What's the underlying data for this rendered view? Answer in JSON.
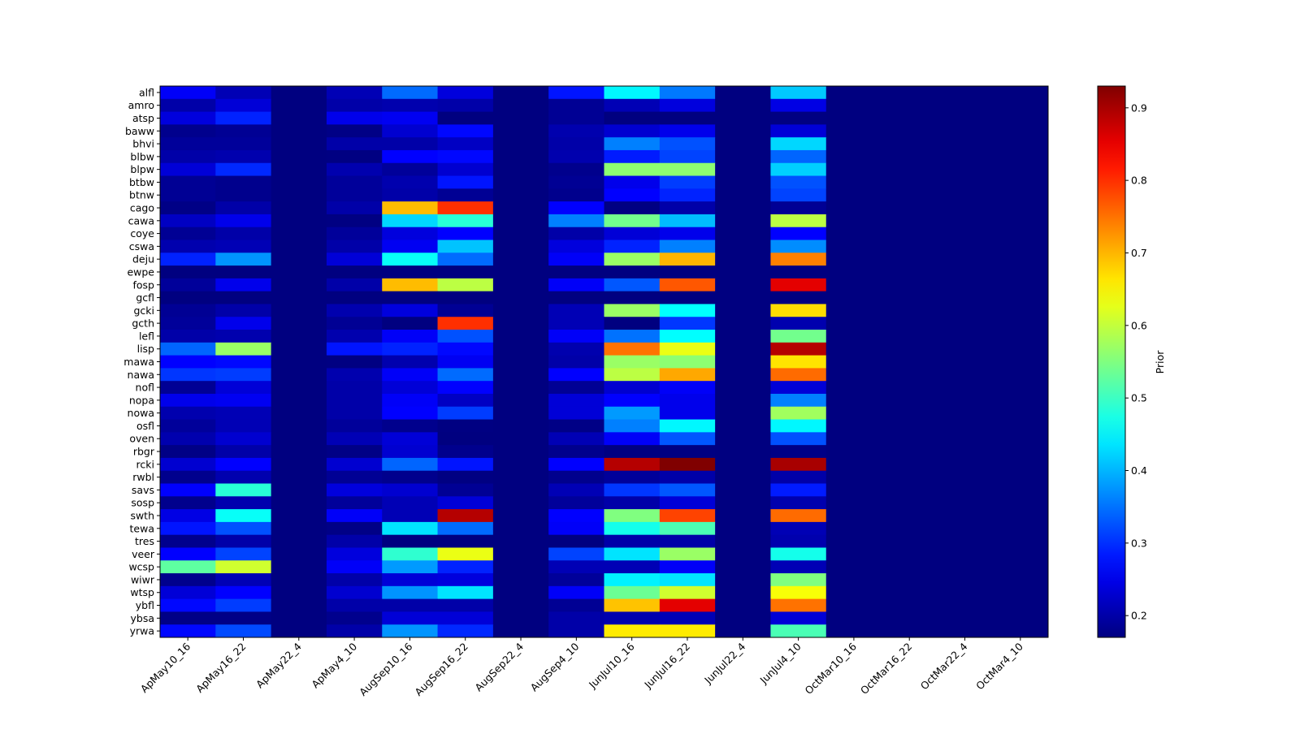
{
  "chart_data": {
    "type": "heatmap",
    "title": "",
    "xlabel": "",
    "ylabel": "",
    "colormap": "jet",
    "clim": [
      0.17,
      0.93
    ],
    "colorbar": {
      "label": "Prior",
      "ticks": [
        0.2,
        0.3,
        0.4,
        0.5,
        0.6,
        0.7,
        0.8,
        0.9
      ],
      "tick_labels": [
        "0.2",
        "0.3",
        "0.4",
        "0.5",
        "0.6",
        "0.7",
        "0.8",
        "0.9"
      ]
    },
    "columns": [
      "ApMay10_16",
      "ApMay16_22",
      "ApMay22_4",
      "ApMay4_10",
      "AugSep10_16",
      "AugSep16_22",
      "AugSep22_4",
      "AugSep4_10",
      "JunJul10_16",
      "JunJul16_22",
      "JunJul22_4",
      "JunJul4_10",
      "OctMar10_16",
      "OctMar16_22",
      "OctMar22_4",
      "OctMar4_10"
    ],
    "rows": [
      "alfl",
      "amro",
      "atsp",
      "baww",
      "bhvi",
      "blbw",
      "blpw",
      "btbw",
      "btnw",
      "cago",
      "cawa",
      "coye",
      "cswa",
      "deju",
      "ewpe",
      "fosp",
      "gcfl",
      "gcki",
      "gcth",
      "lefl",
      "lisp",
      "mawa",
      "nawa",
      "nofl",
      "nopa",
      "nowa",
      "osfl",
      "oven",
      "rbgr",
      "rcki",
      "rwbl",
      "savs",
      "sosp",
      "swth",
      "tewa",
      "tres",
      "veer",
      "wcsp",
      "wiwr",
      "wtsp",
      "ybfl",
      "ybsa",
      "yrwa"
    ],
    "values": [
      [
        0.26,
        0.21,
        0.17,
        0.21,
        0.345,
        0.24,
        0.17,
        0.28,
        0.45,
        0.355,
        0.17,
        0.415,
        0.17,
        0.17,
        0.17,
        0.17
      ],
      [
        0.2,
        0.235,
        0.17,
        0.2,
        0.205,
        0.2,
        0.17,
        0.185,
        0.21,
        0.24,
        0.17,
        0.245,
        0.17,
        0.17,
        0.17,
        0.17
      ],
      [
        0.24,
        0.29,
        0.17,
        0.25,
        0.255,
        0.17,
        0.17,
        0.185,
        0.17,
        0.17,
        0.17,
        0.172,
        0.17,
        0.17,
        0.17,
        0.17
      ],
      [
        0.18,
        0.185,
        0.17,
        0.175,
        0.23,
        0.27,
        0.17,
        0.205,
        0.23,
        0.25,
        0.17,
        0.235,
        0.17,
        0.17,
        0.17,
        0.17
      ],
      [
        0.19,
        0.19,
        0.17,
        0.2,
        0.2,
        0.22,
        0.17,
        0.2,
        0.36,
        0.325,
        0.17,
        0.425,
        0.17,
        0.17,
        0.17,
        0.17
      ],
      [
        0.2,
        0.205,
        0.17,
        0.172,
        0.265,
        0.27,
        0.17,
        0.205,
        0.285,
        0.315,
        0.17,
        0.34,
        0.17,
        0.17,
        0.17,
        0.17
      ],
      [
        0.235,
        0.295,
        0.17,
        0.205,
        0.19,
        0.23,
        0.17,
        0.18,
        0.56,
        0.56,
        0.17,
        0.42,
        0.17,
        0.17,
        0.17,
        0.17
      ],
      [
        0.185,
        0.18,
        0.17,
        0.19,
        0.205,
        0.28,
        0.17,
        0.185,
        0.25,
        0.31,
        0.17,
        0.325,
        0.17,
        0.17,
        0.17,
        0.17
      ],
      [
        0.185,
        0.18,
        0.17,
        0.19,
        0.2,
        0.185,
        0.17,
        0.18,
        0.265,
        0.29,
        0.17,
        0.315,
        0.17,
        0.17,
        0.17,
        0.17
      ],
      [
        0.175,
        0.2,
        0.17,
        0.2,
        0.695,
        0.8,
        0.17,
        0.265,
        0.172,
        0.2,
        0.17,
        0.185,
        0.17,
        0.17,
        0.17,
        0.17
      ],
      [
        0.22,
        0.25,
        0.17,
        0.172,
        0.425,
        0.485,
        0.17,
        0.36,
        0.54,
        0.405,
        0.17,
        0.595,
        0.17,
        0.17,
        0.17,
        0.17
      ],
      [
        0.185,
        0.2,
        0.17,
        0.19,
        0.24,
        0.265,
        0.17,
        0.2,
        0.235,
        0.25,
        0.17,
        0.265,
        0.17,
        0.17,
        0.17,
        0.17
      ],
      [
        0.205,
        0.21,
        0.17,
        0.2,
        0.255,
        0.41,
        0.17,
        0.24,
        0.29,
        0.36,
        0.17,
        0.37,
        0.17,
        0.17,
        0.17,
        0.17
      ],
      [
        0.29,
        0.375,
        0.17,
        0.235,
        0.46,
        0.345,
        0.17,
        0.26,
        0.57,
        0.7,
        0.17,
        0.74,
        0.17,
        0.17,
        0.17,
        0.17
      ],
      [
        0.17,
        0.17,
        0.17,
        0.17,
        0.17,
        0.17,
        0.17,
        0.17,
        0.17,
        0.17,
        0.17,
        0.17,
        0.17,
        0.17,
        0.17,
        0.17
      ],
      [
        0.19,
        0.25,
        0.17,
        0.2,
        0.695,
        0.595,
        0.17,
        0.26,
        0.33,
        0.77,
        0.17,
        0.855,
        0.17,
        0.17,
        0.17,
        0.17
      ],
      [
        0.17,
        0.17,
        0.17,
        0.17,
        0.17,
        0.17,
        0.17,
        0.17,
        0.17,
        0.17,
        0.17,
        0.17,
        0.17,
        0.17,
        0.17,
        0.17
      ],
      [
        0.185,
        0.2,
        0.17,
        0.205,
        0.24,
        0.185,
        0.17,
        0.21,
        0.57,
        0.455,
        0.17,
        0.67,
        0.17,
        0.17,
        0.17,
        0.17
      ],
      [
        0.19,
        0.25,
        0.17,
        0.185,
        0.17,
        0.8,
        0.17,
        0.21,
        0.17,
        0.305,
        0.17,
        0.205,
        0.17,
        0.17,
        0.17,
        0.17
      ],
      [
        0.2,
        0.205,
        0.17,
        0.205,
        0.26,
        0.325,
        0.17,
        0.26,
        0.35,
        0.455,
        0.17,
        0.54,
        0.17,
        0.17,
        0.17,
        0.17
      ],
      [
        0.34,
        0.57,
        0.17,
        0.28,
        0.29,
        0.27,
        0.17,
        0.205,
        0.75,
        0.63,
        0.17,
        0.89,
        0.17,
        0.17,
        0.17,
        0.17
      ],
      [
        0.265,
        0.27,
        0.17,
        0.172,
        0.205,
        0.255,
        0.17,
        0.2,
        0.57,
        0.56,
        0.17,
        0.665,
        0.17,
        0.17,
        0.17,
        0.17
      ],
      [
        0.305,
        0.31,
        0.17,
        0.205,
        0.26,
        0.345,
        0.17,
        0.265,
        0.595,
        0.71,
        0.17,
        0.755,
        0.17,
        0.17,
        0.17,
        0.17
      ],
      [
        0.185,
        0.235,
        0.17,
        0.2,
        0.235,
        0.265,
        0.17,
        0.185,
        0.23,
        0.26,
        0.17,
        0.235,
        0.17,
        0.17,
        0.17,
        0.17
      ],
      [
        0.25,
        0.255,
        0.17,
        0.2,
        0.26,
        0.22,
        0.17,
        0.235,
        0.265,
        0.25,
        0.17,
        0.36,
        0.17,
        0.17,
        0.17,
        0.17
      ],
      [
        0.205,
        0.21,
        0.17,
        0.2,
        0.265,
        0.31,
        0.17,
        0.235,
        0.38,
        0.25,
        0.17,
        0.575,
        0.17,
        0.17,
        0.17,
        0.17
      ],
      [
        0.19,
        0.21,
        0.17,
        0.19,
        0.18,
        0.172,
        0.17,
        0.175,
        0.36,
        0.45,
        0.17,
        0.45,
        0.17,
        0.17,
        0.17,
        0.17
      ],
      [
        0.205,
        0.23,
        0.17,
        0.21,
        0.235,
        0.17,
        0.17,
        0.21,
        0.26,
        0.33,
        0.17,
        0.325,
        0.17,
        0.17,
        0.17,
        0.17
      ],
      [
        0.175,
        0.2,
        0.17,
        0.175,
        0.23,
        0.18,
        0.17,
        0.18,
        0.172,
        0.172,
        0.17,
        0.175,
        0.17,
        0.17,
        0.17,
        0.17
      ],
      [
        0.23,
        0.265,
        0.17,
        0.23,
        0.34,
        0.28,
        0.17,
        0.265,
        0.89,
        0.93,
        0.17,
        0.9,
        0.17,
        0.17,
        0.17,
        0.17
      ],
      [
        0.18,
        0.205,
        0.17,
        0.185,
        0.18,
        0.172,
        0.17,
        0.18,
        0.19,
        0.2,
        0.17,
        0.2,
        0.17,
        0.17,
        0.17,
        0.17
      ],
      [
        0.265,
        0.485,
        0.17,
        0.24,
        0.23,
        0.185,
        0.17,
        0.21,
        0.305,
        0.33,
        0.17,
        0.285,
        0.17,
        0.17,
        0.17,
        0.17
      ],
      [
        0.18,
        0.205,
        0.17,
        0.19,
        0.21,
        0.235,
        0.17,
        0.19,
        0.2,
        0.235,
        0.17,
        0.205,
        0.17,
        0.17,
        0.17,
        0.17
      ],
      [
        0.245,
        0.46,
        0.17,
        0.26,
        0.21,
        0.89,
        0.17,
        0.265,
        0.55,
        0.785,
        0.17,
        0.755,
        0.17,
        0.17,
        0.17,
        0.17
      ],
      [
        0.28,
        0.325,
        0.17,
        0.175,
        0.435,
        0.345,
        0.17,
        0.26,
        0.47,
        0.51,
        0.17,
        0.21,
        0.17,
        0.17,
        0.17,
        0.17
      ],
      [
        0.18,
        0.2,
        0.17,
        0.2,
        0.17,
        0.17,
        0.17,
        0.17,
        0.2,
        0.2,
        0.17,
        0.205,
        0.17,
        0.17,
        0.17,
        0.17
      ],
      [
        0.265,
        0.315,
        0.17,
        0.24,
        0.49,
        0.63,
        0.17,
        0.315,
        0.435,
        0.57,
        0.17,
        0.47,
        0.17,
        0.17,
        0.17,
        0.17
      ],
      [
        0.525,
        0.61,
        0.17,
        0.26,
        0.38,
        0.29,
        0.17,
        0.21,
        0.21,
        0.26,
        0.17,
        0.21,
        0.17,
        0.17,
        0.17,
        0.17
      ],
      [
        0.18,
        0.21,
        0.17,
        0.2,
        0.235,
        0.24,
        0.17,
        0.19,
        0.445,
        0.435,
        0.17,
        0.55,
        0.17,
        0.17,
        0.17,
        0.17
      ],
      [
        0.235,
        0.265,
        0.17,
        0.23,
        0.375,
        0.435,
        0.17,
        0.26,
        0.535,
        0.61,
        0.17,
        0.64,
        0.17,
        0.17,
        0.17,
        0.17
      ],
      [
        0.27,
        0.31,
        0.17,
        0.2,
        0.2,
        0.2,
        0.17,
        0.185,
        0.69,
        0.855,
        0.17,
        0.75,
        0.17,
        0.17,
        0.17,
        0.17
      ],
      [
        0.175,
        0.175,
        0.17,
        0.18,
        0.235,
        0.235,
        0.17,
        0.2,
        0.205,
        0.21,
        0.17,
        0.235,
        0.17,
        0.17,
        0.17,
        0.17
      ],
      [
        0.27,
        0.32,
        0.17,
        0.2,
        0.375,
        0.295,
        0.17,
        0.2,
        0.66,
        0.66,
        0.17,
        0.51,
        0.17,
        0.17,
        0.17,
        0.17
      ]
    ]
  }
}
